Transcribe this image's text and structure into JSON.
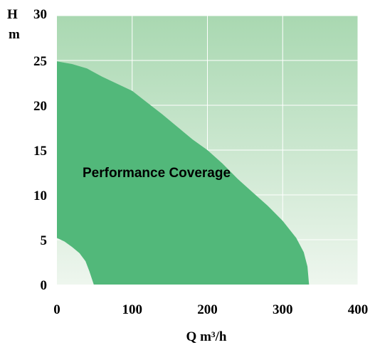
{
  "chart_data": {
    "type": "area",
    "xlabel": "Q m³/h",
    "ylabel_top": "H",
    "ylabel_bottom": "m",
    "xlim": [
      0,
      400
    ],
    "ylim": [
      0,
      30
    ],
    "x_ticks": [
      "0",
      "100",
      "200",
      "300",
      "400"
    ],
    "y_ticks": [
      "0",
      "5",
      "10",
      "15",
      "20",
      "25",
      "30"
    ],
    "grid": true,
    "annotation": "Performance Coverage",
    "colors": {
      "bg_top": "#a9d8b1",
      "bg_bottom": "#eef6ee",
      "area_fill": "#52b87a",
      "grid": "#ffffff"
    },
    "upper_boundary": [
      [
        0,
        24.9
      ],
      [
        20,
        24.6
      ],
      [
        40,
        24.1
      ],
      [
        60,
        23.2
      ],
      [
        80,
        22.4
      ],
      [
        100,
        21.6
      ],
      [
        120,
        20.3
      ],
      [
        140,
        19.0
      ],
      [
        160,
        17.6
      ],
      [
        180,
        16.2
      ],
      [
        200,
        15.0
      ],
      [
        220,
        13.5
      ],
      [
        240,
        11.8
      ],
      [
        260,
        10.3
      ],
      [
        280,
        8.8
      ],
      [
        300,
        7.1
      ],
      [
        318,
        5.2
      ],
      [
        328,
        3.6
      ],
      [
        333,
        2.0
      ],
      [
        335,
        0
      ]
    ],
    "lower_boundary": [
      [
        0,
        5.2
      ],
      [
        10,
        4.8
      ],
      [
        20,
        4.2
      ],
      [
        30,
        3.5
      ],
      [
        38,
        2.6
      ],
      [
        43,
        1.5
      ],
      [
        47,
        0.5
      ],
      [
        49,
        0
      ]
    ]
  }
}
